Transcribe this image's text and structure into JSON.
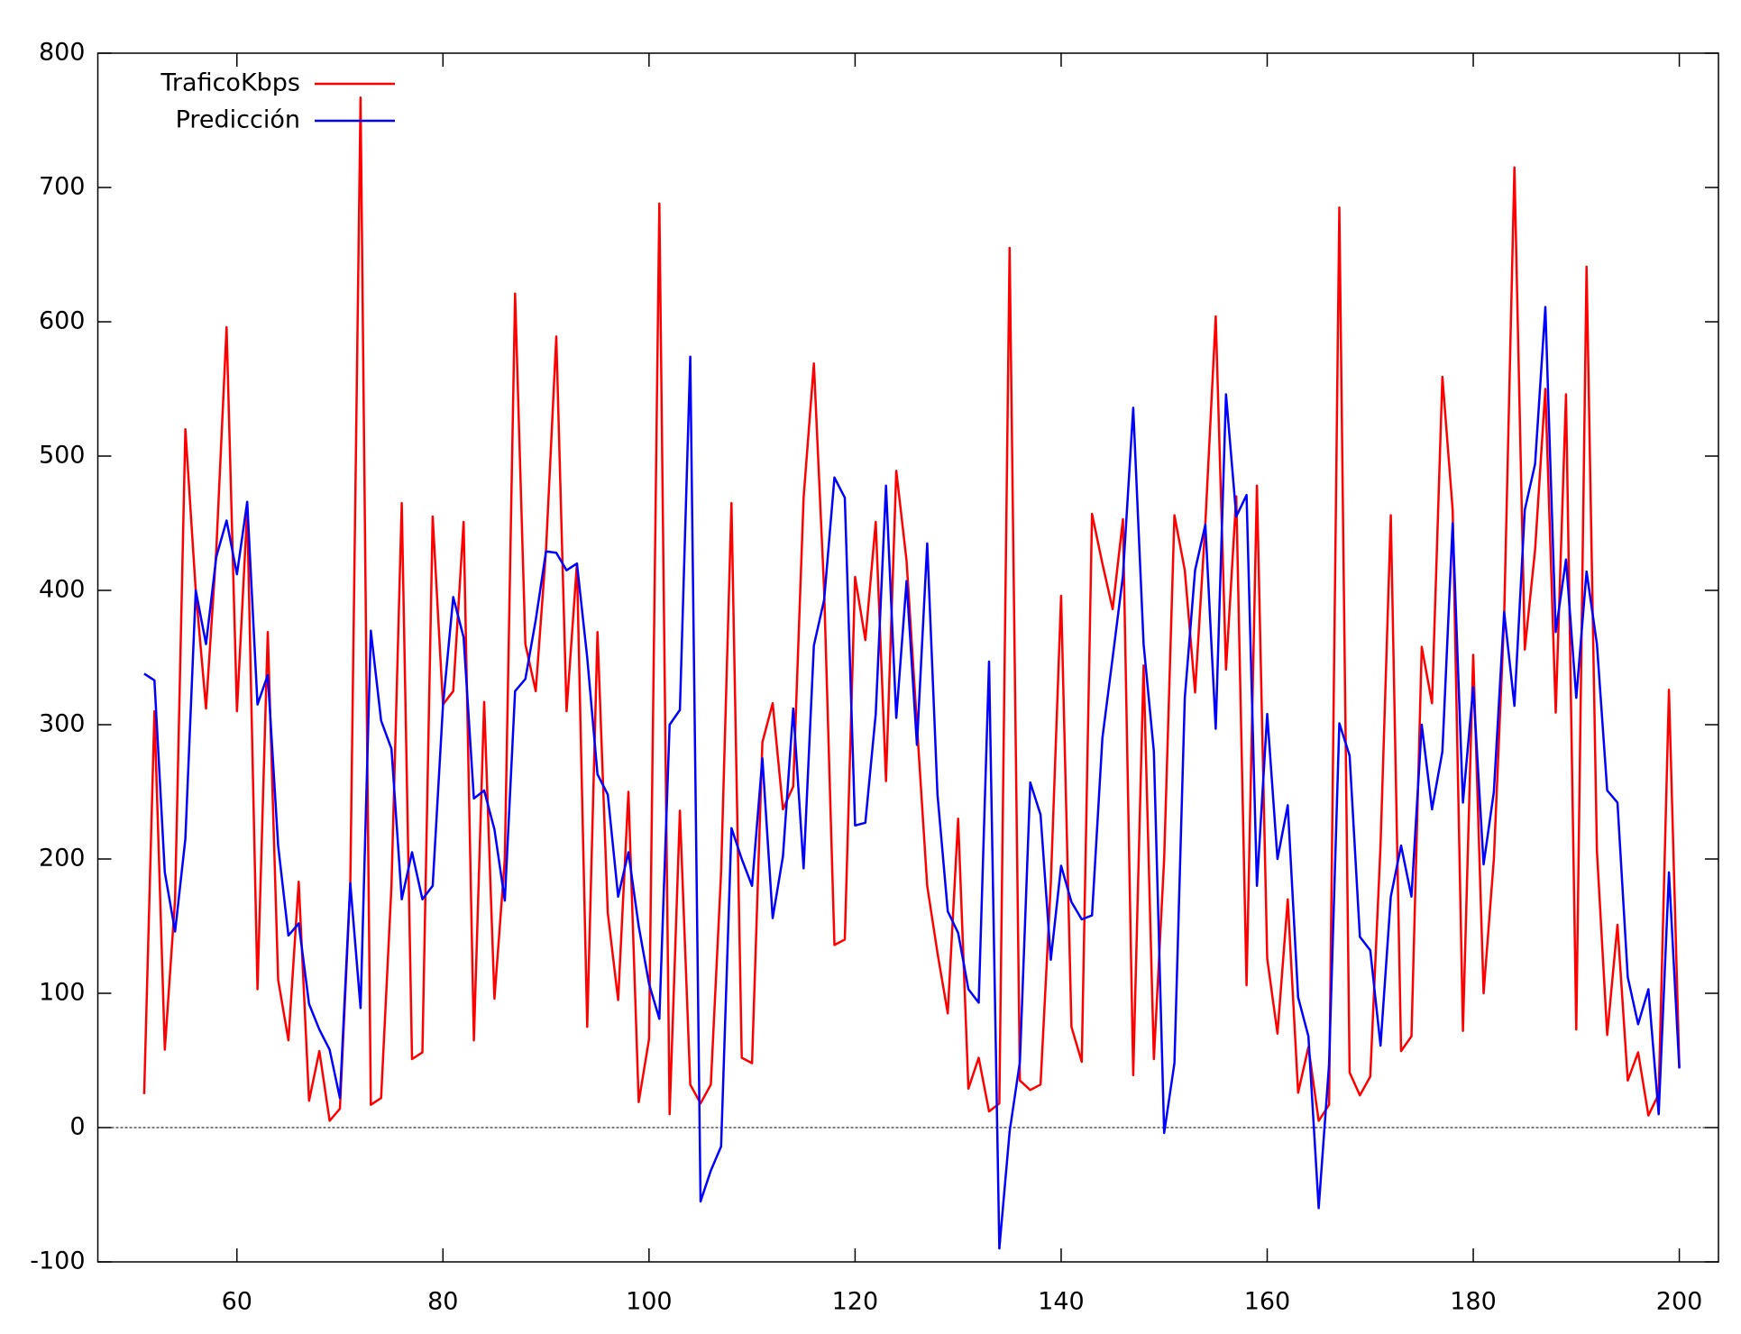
{
  "chart_data": {
    "type": "line",
    "x": [
      51,
      52,
      53,
      54,
      55,
      56,
      57,
      58,
      59,
      60,
      61,
      62,
      63,
      64,
      65,
      66,
      67,
      68,
      69,
      70,
      71,
      72,
      73,
      74,
      75,
      76,
      77,
      78,
      79,
      80,
      81,
      82,
      83,
      84,
      85,
      86,
      87,
      88,
      89,
      90,
      91,
      92,
      93,
      94,
      95,
      96,
      97,
      98,
      99,
      100,
      101,
      102,
      103,
      104,
      105,
      106,
      107,
      108,
      109,
      110,
      111,
      112,
      113,
      114,
      115,
      116,
      117,
      118,
      119,
      120,
      121,
      122,
      123,
      124,
      125,
      126,
      127,
      128,
      129,
      130,
      131,
      132,
      133,
      134,
      135,
      136,
      137,
      138,
      139,
      140,
      141,
      142,
      143,
      144,
      145,
      146,
      147,
      148,
      149,
      150,
      151,
      152,
      153,
      154,
      155,
      156,
      157,
      158,
      159,
      160,
      161,
      162,
      163,
      164,
      165,
      166,
      167,
      168,
      169,
      170,
      171,
      172,
      173,
      174,
      175,
      176,
      177,
      178,
      179,
      180,
      181,
      182,
      183,
      184,
      185,
      186,
      187,
      188,
      189,
      190,
      191,
      192,
      193,
      194,
      195,
      196,
      197,
      198,
      199,
      200
    ],
    "series": [
      {
        "name": "TraficoKbps",
        "color": "#ff0000",
        "values": [
          25,
          310,
          58,
          170,
          520,
          400,
          312,
          430,
          596,
          310,
          460,
          103,
          369,
          110,
          65,
          183,
          20,
          57,
          5,
          14,
          180,
          767,
          17,
          22,
          180,
          465,
          51,
          56,
          455,
          315,
          325,
          451,
          65,
          317,
          96,
          200,
          621,
          360,
          325,
          430,
          589,
          310,
          420,
          75,
          369,
          160,
          95,
          250,
          19,
          66,
          688,
          10,
          236,
          32,
          18,
          32,
          190,
          465,
          52,
          48,
          287,
          316,
          237,
          254,
          469,
          569,
          400,
          136,
          140,
          410,
          363,
          451,
          258,
          489,
          422,
          300,
          180,
          130,
          85,
          230,
          29,
          52,
          12,
          18,
          655,
          35,
          28,
          32,
          182,
          396,
          75,
          49,
          457,
          420,
          386,
          453,
          39,
          344,
          51,
          200,
          456,
          415,
          324,
          450,
          604,
          341,
          470,
          106,
          478,
          126,
          70,
          170,
          26,
          60,
          5,
          17,
          685,
          41,
          24,
          38,
          210,
          456,
          57,
          68,
          358,
          316,
          559,
          460,
          72,
          352,
          100,
          200,
          380,
          715,
          356,
          430,
          550,
          309,
          546,
          73,
          641,
          206,
          69,
          151,
          35,
          56,
          9,
          25,
          326,
          45
        ]
      },
      {
        "name": "Predicción",
        "color": "#0000ff",
        "values": [
          338,
          333,
          190,
          146,
          215,
          400,
          360,
          425,
          452,
          412,
          466,
          315,
          337,
          210,
          143,
          152,
          92,
          73,
          58,
          22,
          182,
          89,
          370,
          303,
          282,
          170,
          205,
          170,
          180,
          314,
          395,
          365,
          245,
          251,
          222,
          169,
          325,
          334,
          378,
          429,
          428,
          415,
          420,
          350,
          263,
          248,
          172,
          205,
          150,
          107,
          81,
          300,
          311,
          574,
          -55,
          -32,
          -14,
          223,
          200,
          180,
          275,
          156,
          202,
          312,
          193,
          359,
          393,
          484,
          469,
          225,
          227,
          308,
          478,
          305,
          407,
          285,
          435,
          248,
          161,
          145,
          103,
          93,
          347,
          -90,
          -3,
          49,
          257,
          233,
          125,
          195,
          168,
          155,
          158,
          290,
          350,
          411,
          536,
          360,
          280,
          -4,
          48,
          320,
          415,
          449,
          297,
          546,
          455,
          471,
          180,
          308,
          200,
          240,
          97,
          68,
          -60,
          47,
          301,
          277,
          142,
          132,
          61,
          172,
          210,
          172,
          300,
          237,
          280,
          450,
          242,
          328,
          196,
          250,
          384,
          314,
          460,
          494,
          611,
          369,
          423,
          320,
          414,
          360,
          251,
          242,
          112,
          77,
          103,
          10,
          190,
          44
        ]
      }
    ],
    "xlim": [
      46.5,
      203.8
    ],
    "ylim": [
      -100,
      800
    ],
    "xticks": [
      60,
      80,
      100,
      120,
      140,
      160,
      180,
      200
    ],
    "yticks": [
      -100,
      0,
      100,
      200,
      300,
      400,
      500,
      600,
      700,
      800
    ],
    "zero_axis": true,
    "legend": "upper left"
  }
}
